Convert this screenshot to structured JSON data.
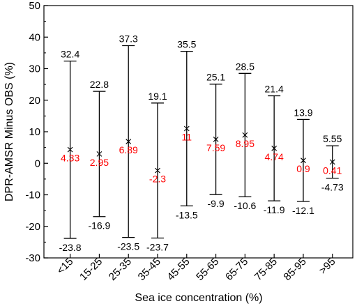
{
  "chart_data": {
    "type": "errorbar",
    "xlabel": "Sea ice concentration (%)",
    "ylabel": "DPR-AMSR Minus OBS (%)",
    "ylim": [
      -30,
      50
    ],
    "yticks": [
      "-30",
      "-20",
      "-10",
      "0",
      "10",
      "20",
      "30",
      "40",
      "50"
    ],
    "categories": [
      "<15",
      "15-25",
      "25-35",
      "35-45",
      "45-55",
      "55-65",
      "65-75",
      "75-85",
      "85-95",
      ">95"
    ],
    "max": [
      32.4,
      22.8,
      37.3,
      19.1,
      35.5,
      25.1,
      28.5,
      21.4,
      13.9,
      5.55
    ],
    "mean": [
      4.33,
      2.95,
      6.89,
      -2.3,
      11,
      7.59,
      8.95,
      4.74,
      0.9,
      0.41
    ],
    "min": [
      -23.8,
      -16.9,
      -23.5,
      -23.7,
      -13.5,
      -9.9,
      -10.6,
      -11.9,
      -12.1,
      -4.73
    ],
    "max_labels": [
      "32.4",
      "22.8",
      "37.3",
      "19.1",
      "35.5",
      "25.1",
      "28.5",
      "21.4",
      "13.9",
      "5.55"
    ],
    "mean_labels": [
      "4.33",
      "2.95",
      "6.89",
      "-2.3",
      "11",
      "7.59",
      "8.95",
      "4.74",
      "0.9",
      "0.41"
    ],
    "min_labels": [
      "-23.8",
      "-16.9",
      "-23.5",
      "-23.7",
      "-13.5",
      "-9.9",
      "-10.6",
      "-11.9",
      "-12.1",
      "-4.73"
    ],
    "colors": {
      "bars": "#000000",
      "mean_labels": "#ff0000",
      "text": "#000000"
    }
  }
}
